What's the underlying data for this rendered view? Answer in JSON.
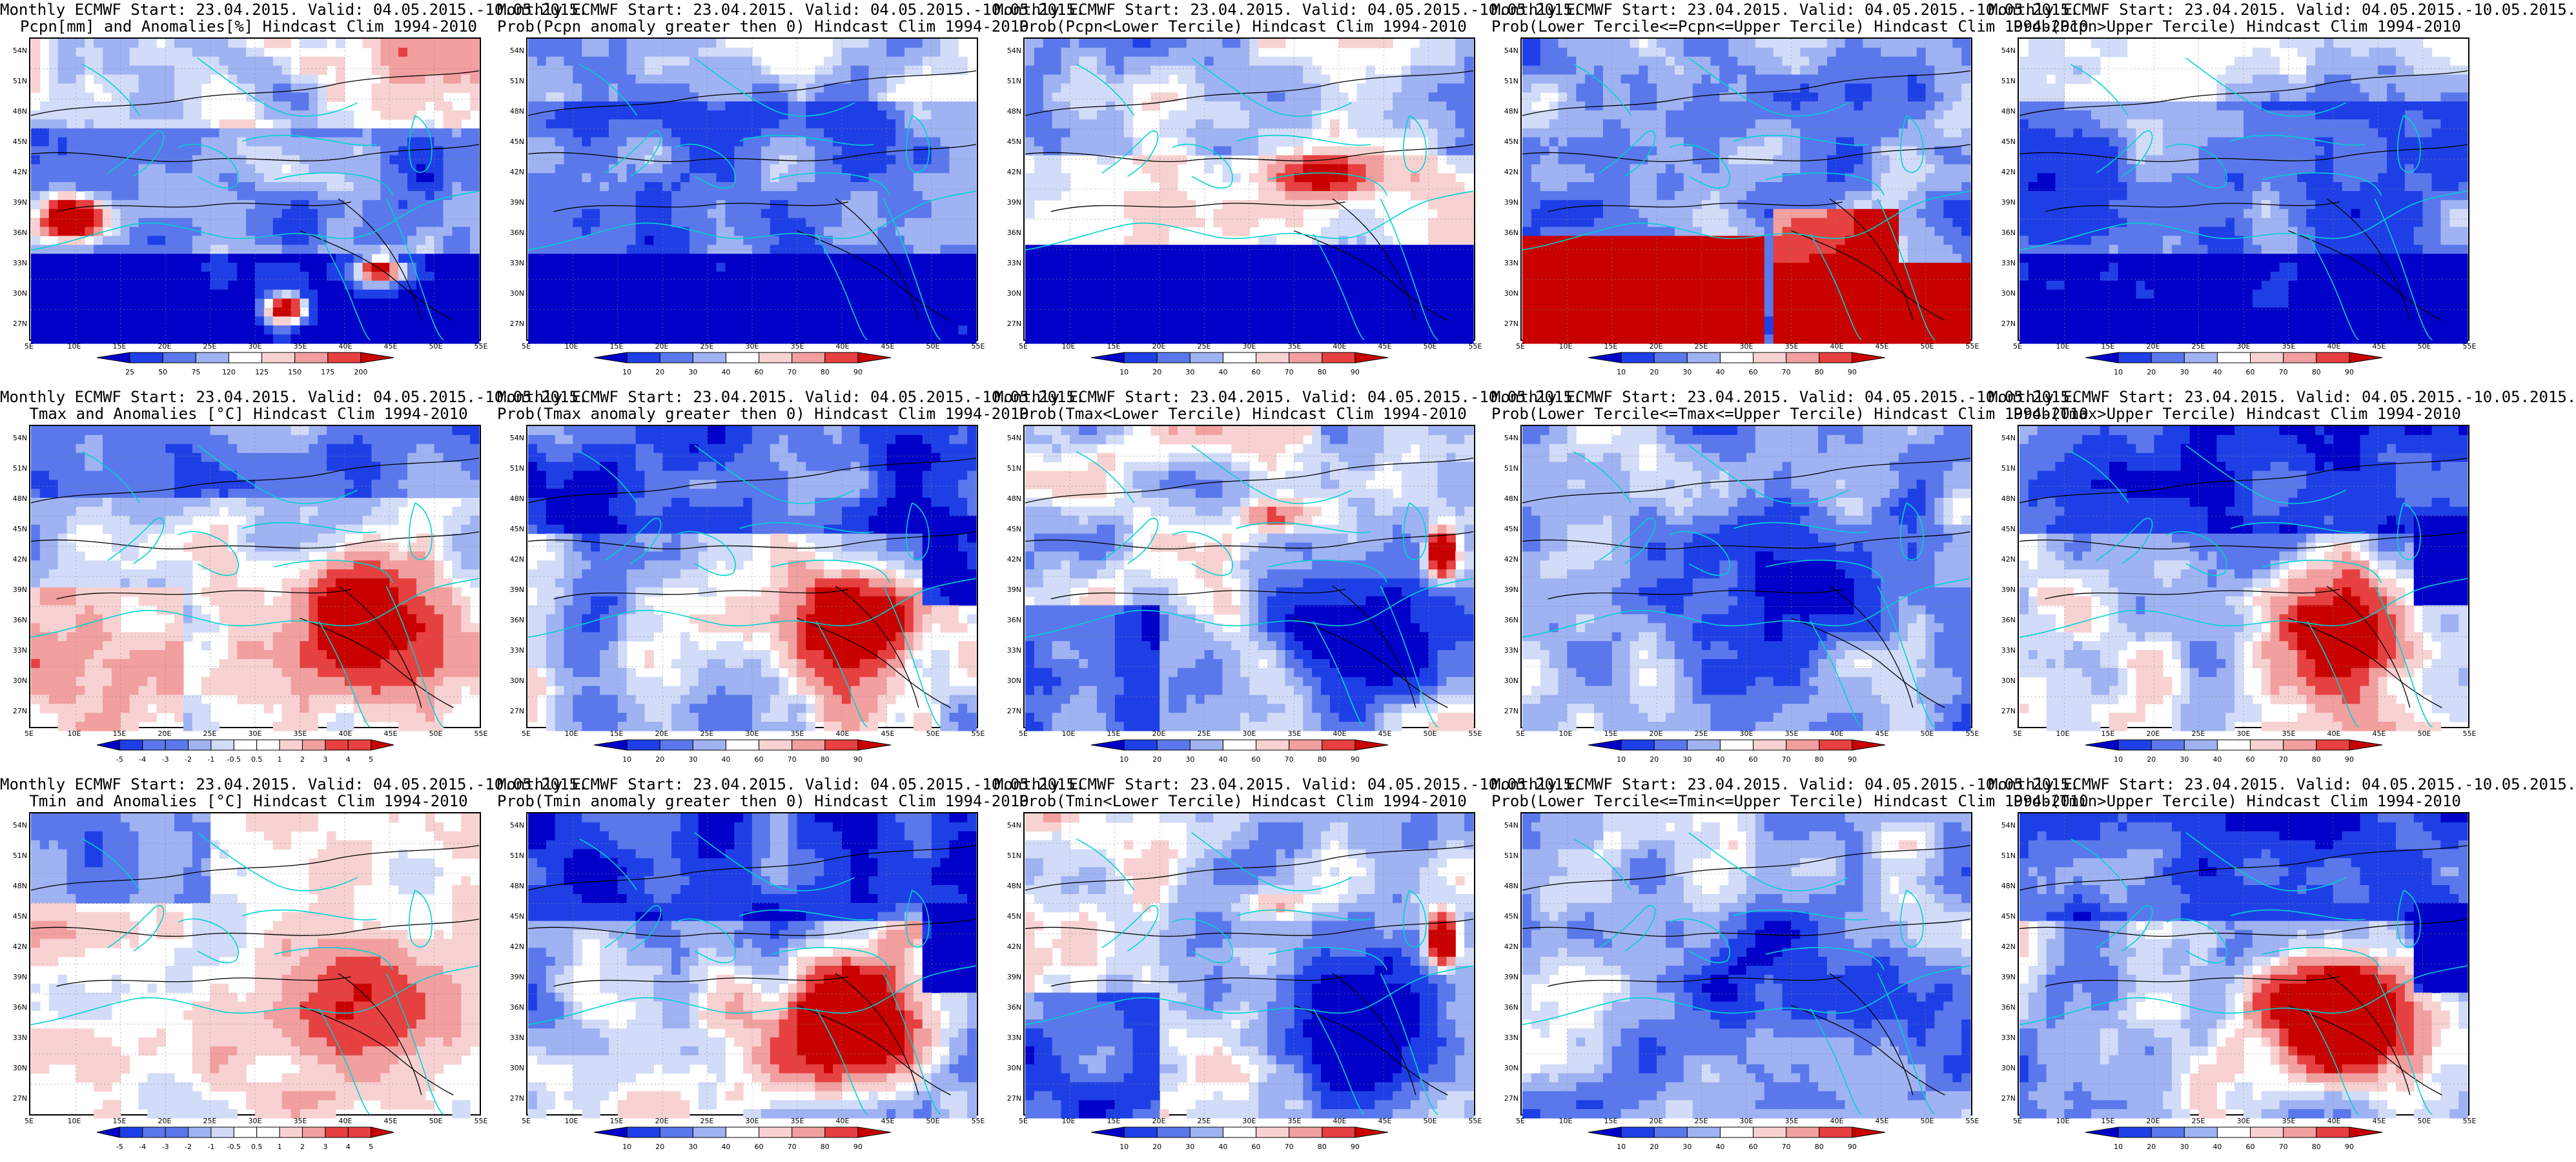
{
  "lat_labels": [
    "54N",
    "51N",
    "48N",
    "45N",
    "42N",
    "39N",
    "36N",
    "33N",
    "30N",
    "27N"
  ],
  "lon_labels": [
    "5E",
    "10E",
    "15E",
    "20E",
    "25E",
    "30E",
    "35E",
    "40E",
    "45E",
    "50E",
    "55E"
  ],
  "colors": {
    "deep_blue": "#0000c8",
    "blue": "#1f3fe6",
    "mid_blue": "#5a78ec",
    "light_blue": "#9fb2f2",
    "pale_blue": "#d2dcf8",
    "pale_red": "#f8d2d2",
    "light_red": "#f29f9f",
    "red": "#e64040",
    "dark_red": "#c80000",
    "coast": "#00d2d2",
    "contour": "#000000"
  },
  "scales": {
    "pcpn_anom": [
      "25",
      "50",
      "75",
      "120",
      "125",
      "150",
      "175",
      "200"
    ],
    "temp_anom": [
      "-5",
      "-4",
      "-3",
      "-2",
      "-1",
      "-0.5",
      "0.5",
      "1",
      "2",
      "3",
      "4",
      "5"
    ],
    "prob": [
      "10",
      "20",
      "30",
      "40",
      "60",
      "70",
      "80",
      "90"
    ]
  },
  "panels": [
    {
      "id": "r1c1",
      "title1": "Monthly ECMWF Start: 23.04.2015. Valid: 04.05.2015.-10.05.2015.",
      "title2": "Pcpn[mm] and Anomalies[%] Hindcast Clim 1994-2010",
      "scale": "pcpn_anom",
      "pattern": "pcpn_anom"
    },
    {
      "id": "r1c2",
      "title1": "Monthly ECMWF Start: 23.04.2015. Valid: 04.05.2015.-10.05.2015.",
      "title2": "Prob(Pcpn anomaly greater then 0) Hindcast Clim 1994-2010",
      "scale": "prob",
      "pattern": "blue_heavy"
    },
    {
      "id": "r1c3",
      "title1": "Monthly ECMWF Start: 23.04.2015. Valid: 04.05.2015.-10.05.2015.",
      "title2": "Prob(Pcpn<Lower Tercile) Hindcast Clim 1994-2010",
      "scale": "prob",
      "pattern": "lower_pcpn"
    },
    {
      "id": "r1c4",
      "title1": "Monthly ECMWF Start: 23.04.2015. Valid: 04.05.2015.-10.05.2015.",
      "title2": "Prob(Lower Tercile<=Pcpn<=Upper Tercile) Hindcast Clim 1994-2010",
      "scale": "prob",
      "pattern": "middle_pcpn"
    },
    {
      "id": "r1c5",
      "title1": "Monthly ECMWF Start: 23.04.2015. Valid: 04.05.2015.-10.05.2015.",
      "title2": "Prob(Pcpn>Upper Tercile) Hindcast Clim 1994-2010",
      "scale": "prob",
      "pattern": "blue_heavy"
    },
    {
      "id": "r2c1",
      "title1": "Monthly ECMWF Start: 23.04.2015. Valid: 04.05.2015.-10.05.2015.",
      "title2": "Tmax and Anomalies [°C] Hindcast Clim 1994-2010",
      "scale": "temp_anom",
      "pattern": "temp_anom"
    },
    {
      "id": "r2c2",
      "title1": "Monthly ECMWF Start: 23.04.2015. Valid: 04.05.2015.-10.05.2015.",
      "title2": "Prob(Tmax anomaly greater then 0) Hindcast Clim 1994-2010",
      "scale": "prob",
      "pattern": "warm_east"
    },
    {
      "id": "r2c3",
      "title1": "Monthly ECMWF Start: 23.04.2015. Valid: 04.05.2015.-10.05.2015.",
      "title2": "Prob(Tmax<Lower Tercile) Hindcast Clim 1994-2010",
      "scale": "prob",
      "pattern": "cold_east"
    },
    {
      "id": "r2c4",
      "title1": "Monthly ECMWF Start: 23.04.2015. Valid: 04.05.2015.-10.05.2015.",
      "title2": "Prob(Lower Tercile<=Tmax<=Upper Tercile) Hindcast Clim 1994-2010",
      "scale": "prob",
      "pattern": "middle_temp"
    },
    {
      "id": "r2c5",
      "title1": "Monthly ECMWF Start: 23.04.2015. Valid: 04.05.2015.-10.05.2015.",
      "title2": "Prob(Tmax>Upper Tercile) Hindcast Clim 1994-2010",
      "scale": "prob",
      "pattern": "warm_east"
    },
    {
      "id": "r3c1",
      "title1": "Monthly ECMWF Start: 23.04.2015. Valid: 04.05.2015.-10.05.2015.",
      "title2": "Tmin and Anomalies [°C] Hindcast Clim 1994-2010",
      "scale": "temp_anom",
      "pattern": "temp_anom_light"
    },
    {
      "id": "r3c2",
      "title1": "Monthly ECMWF Start: 23.04.2015. Valid: 04.05.2015.-10.05.2015.",
      "title2": "Prob(Tmin anomaly greater then 0) Hindcast Clim 1994-2010",
      "scale": "prob",
      "pattern": "warm_east"
    },
    {
      "id": "r3c3",
      "title1": "Monthly ECMWF Start: 23.04.2015. Valid: 04.05.2015.-10.05.2015.",
      "title2": "Prob(Tmin<Lower Tercile) Hindcast Clim 1994-2010",
      "scale": "prob",
      "pattern": "cold_east"
    },
    {
      "id": "r3c4",
      "title1": "Monthly ECMWF Start: 23.04.2015. Valid: 04.05.2015.-10.05.2015.",
      "title2": "Prob(Lower Tercile<=Tmin<=Upper Tercile) Hindcast Clim 1994-2010",
      "scale": "prob",
      "pattern": "middle_temp"
    },
    {
      "id": "r3c5",
      "title1": "Monthly ECMWF Start: 23.04.2015. Valid: 04.05.2015.-10.05.2015.",
      "title2": "Prob(Tmin>Upper Tercile) Hindcast Clim 1994-2010",
      "scale": "prob",
      "pattern": "warm_east"
    }
  ]
}
